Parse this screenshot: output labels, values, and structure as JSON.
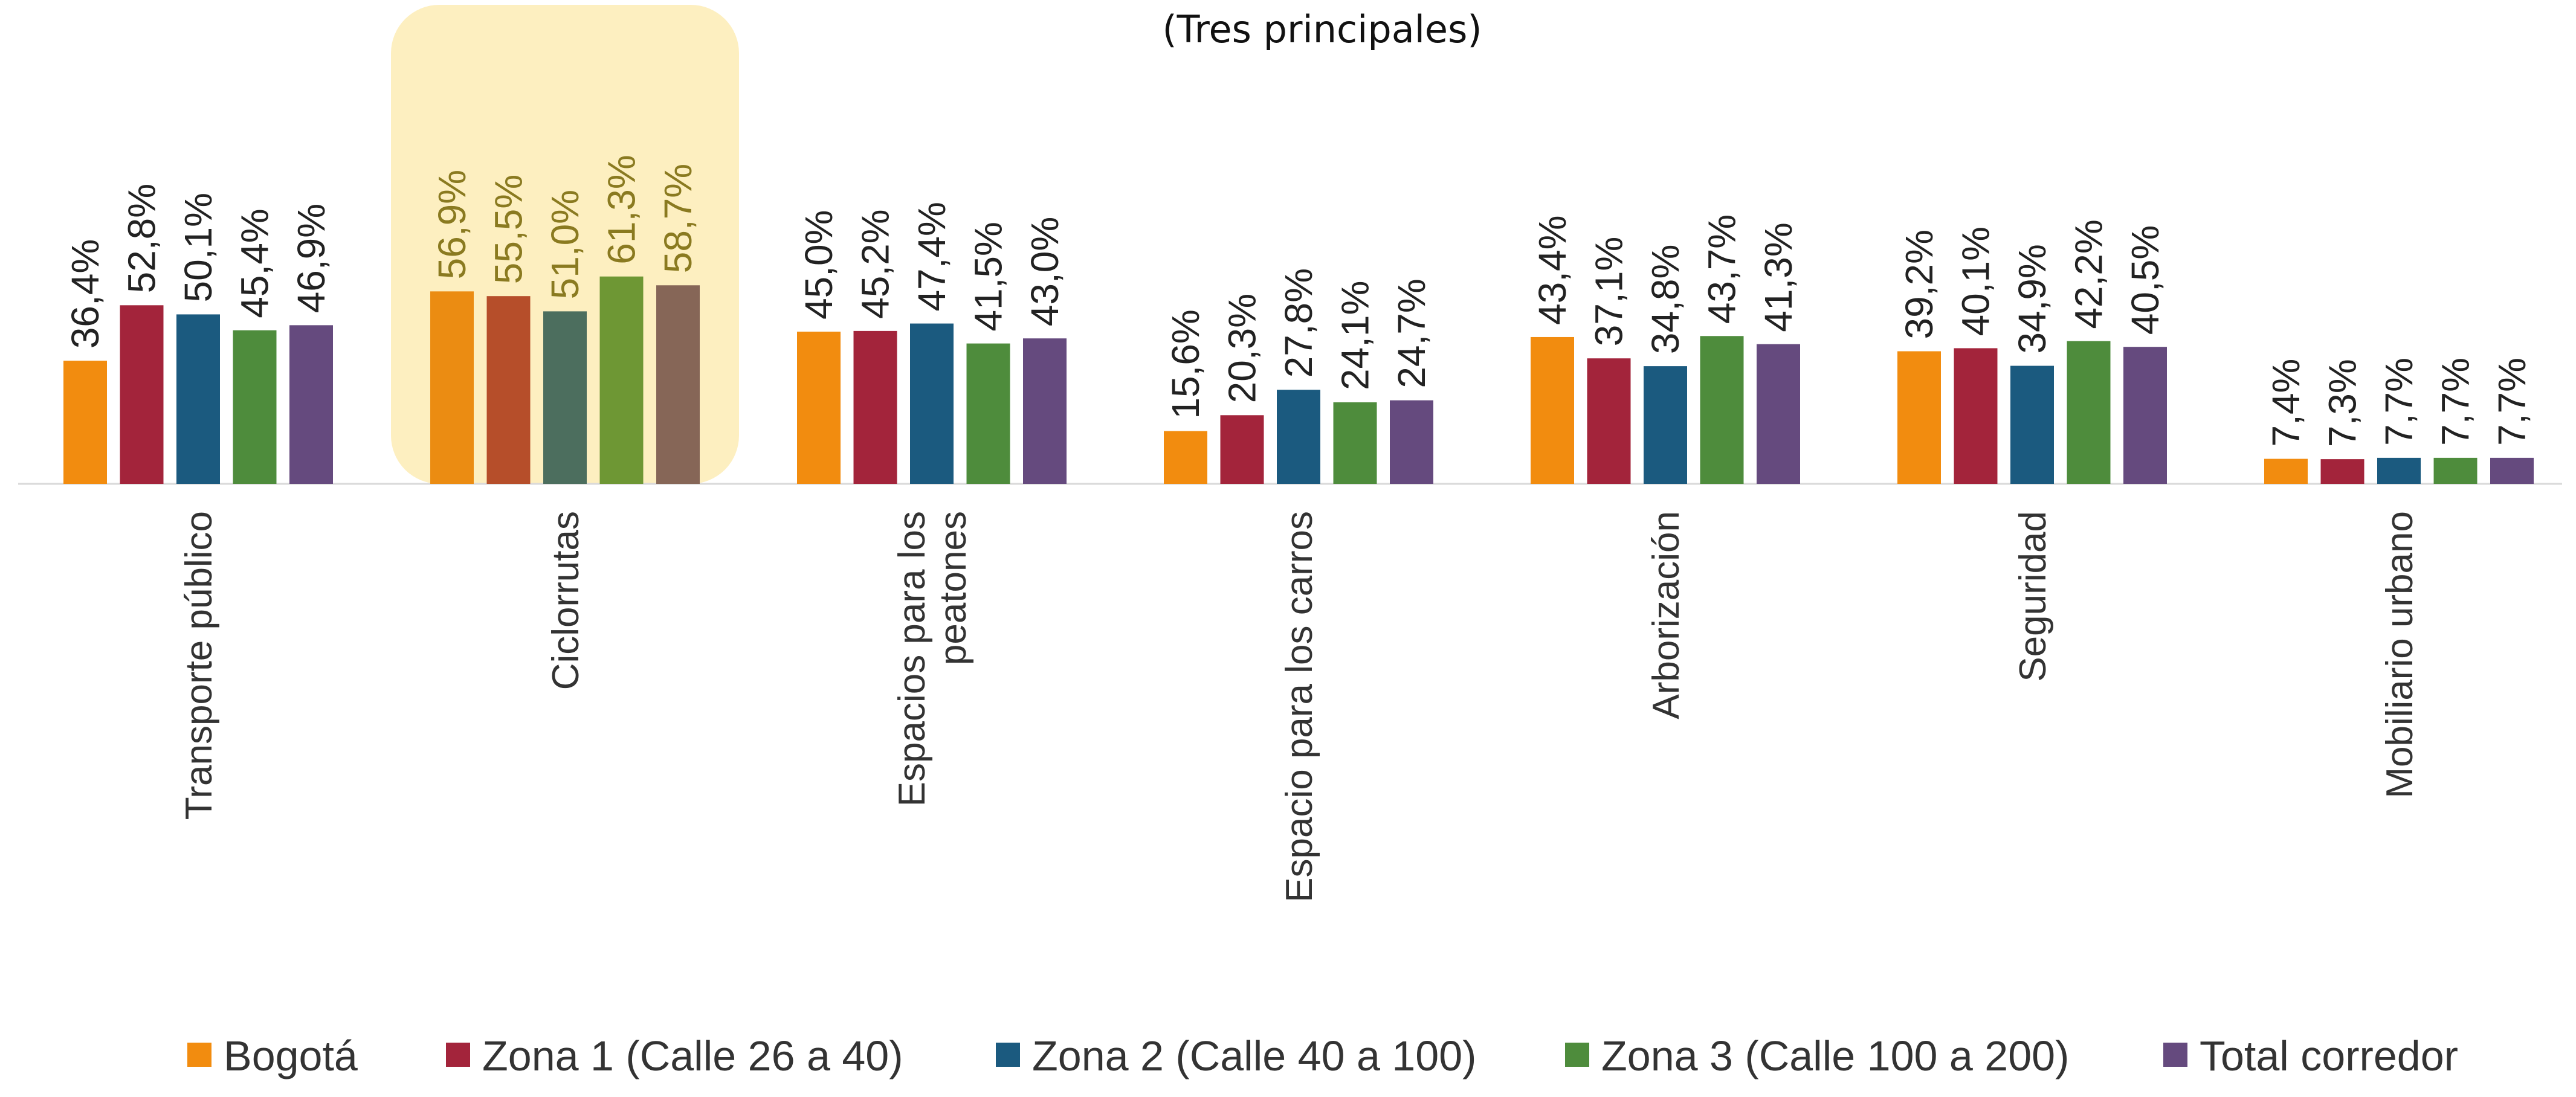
{
  "chart_data": {
    "type": "bar",
    "subtitle": "(Tres principales)",
    "categories": [
      [
        "Transporte público"
      ],
      [
        "Ciclorrutas"
      ],
      [
        "Espacios para los",
        "peatones"
      ],
      [
        "Espacio para los carros"
      ],
      [
        "Arborización"
      ],
      [
        "Seguridad"
      ],
      [
        "Mobiliario urbano"
      ]
    ],
    "series": [
      {
        "name": "Bogotá",
        "color": "#F28C0F",
        "values": [
          36.4,
          56.9,
          45.0,
          15.6,
          43.4,
          39.2,
          7.4
        ]
      },
      {
        "name": "Zona 1 (Calle 26 a 40)",
        "color": "#A3243B",
        "values": [
          52.8,
          55.5,
          45.2,
          20.3,
          37.1,
          40.1,
          7.3
        ]
      },
      {
        "name": "Zona 2 (Calle 40 a 100)",
        "color": "#1B5A7F",
        "values": [
          50.1,
          51.0,
          47.4,
          27.8,
          34.8,
          34.9,
          7.7
        ]
      },
      {
        "name": "Zona 3 (Calle 100 a 200)",
        "color": "#4E8C3C",
        "values": [
          45.4,
          61.3,
          41.5,
          24.1,
          43.7,
          42.2,
          7.7
        ]
      },
      {
        "name": "Total corredor",
        "color": "#654A7E",
        "values": [
          46.9,
          58.7,
          43.0,
          24.7,
          41.3,
          40.5,
          7.7
        ]
      }
    ],
    "highlight_category": 1,
    "highlight_color": "#FDEFC0",
    "highlight_series_colors": [
      "#EB8C12",
      "#B64E2A",
      "#4C6E5E",
      "#6E9734",
      "#866657"
    ],
    "ylim": [
      0,
      75
    ],
    "value_suffix": "%",
    "decimal_separator": ",",
    "legend_position": "bottom",
    "grid": false
  }
}
